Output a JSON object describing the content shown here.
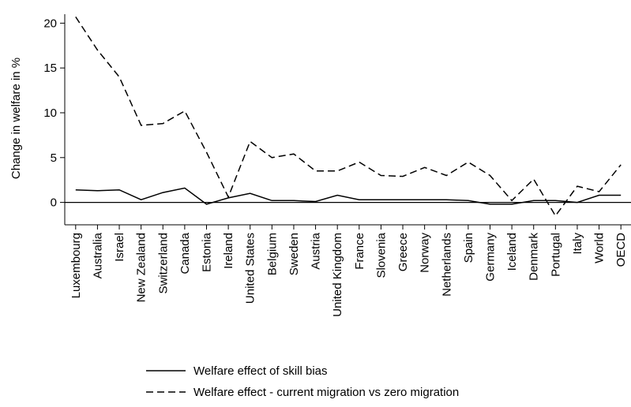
{
  "chart_data": {
    "type": "line",
    "y_label": "Change in welfare in %",
    "categories": [
      "Luxembourg",
      "Australia",
      "Israel",
      "New Zealand",
      "Switzerland",
      "Canada",
      "Estonia",
      "Ireland",
      "United States",
      "Belgium",
      "Sweden",
      "Austria",
      "United Kingdom",
      "France",
      "Slovenia",
      "Greece",
      "Norway",
      "Netherlands",
      "Spain",
      "Germany",
      "Iceland",
      "Denmark",
      "Portugal",
      "Italy",
      "World",
      "OECD"
    ],
    "series": [
      {
        "name": "Welfare effect of skill bias",
        "color": "#000000",
        "dash": "solid",
        "values": [
          1.4,
          1.3,
          1.4,
          0.3,
          1.1,
          1.6,
          -0.2,
          0.5,
          1.0,
          0.2,
          0.2,
          0.1,
          0.8,
          0.3,
          0.3,
          0.3,
          0.3,
          0.3,
          0.2,
          -0.2,
          -0.2,
          0.2,
          0.2,
          0.0,
          0.8,
          0.8
        ]
      },
      {
        "name": "Welfare effect - current migration vs zero migration",
        "color": "#000000",
        "dash": "dashed",
        "values": [
          20.7,
          17.0,
          14.0,
          8.6,
          8.8,
          10.2,
          5.6,
          0.6,
          6.8,
          5.0,
          5.4,
          3.5,
          3.5,
          4.5,
          3.0,
          2.9,
          3.9,
          3.0,
          4.5,
          3.0,
          0.2,
          2.6,
          -1.5,
          1.8,
          1.2,
          4.2
        ]
      }
    ],
    "ylim": [
      -2.5,
      21
    ],
    "yticks": [
      0,
      5,
      10,
      15,
      20
    ],
    "zero_line": true
  }
}
